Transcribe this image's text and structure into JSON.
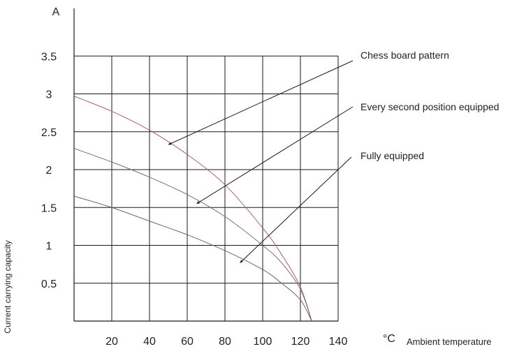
{
  "chart_data": {
    "type": "line",
    "xlabel": "Ambient temperature",
    "xunit": "°C",
    "ylabel": "Current carrying capacity",
    "yunit": "A",
    "xlim": [
      0,
      145
    ],
    "ylim": [
      0,
      3.5
    ],
    "x_ticks": [
      20,
      40,
      60,
      80,
      100,
      120,
      140
    ],
    "y_ticks": [
      0.5,
      1,
      1.5,
      2,
      2.5,
      3,
      3.5
    ],
    "grid": true,
    "series": [
      {
        "name": "Chess board pattern",
        "color": "#a06070",
        "points": [
          [
            0,
            2.97
          ],
          [
            20,
            2.77
          ],
          [
            40,
            2.52
          ],
          [
            60,
            2.2
          ],
          [
            80,
            1.8
          ],
          [
            100,
            1.23
          ],
          [
            110,
            0.88
          ],
          [
            120,
            0.45
          ],
          [
            126,
            0.0
          ]
        ],
        "arrow_target": [
          50,
          2.33
        ]
      },
      {
        "name": "Every second position equipped",
        "color": "#806878",
        "points": [
          [
            0,
            2.28
          ],
          [
            20,
            2.1
          ],
          [
            40,
            1.9
          ],
          [
            60,
            1.67
          ],
          [
            80,
            1.38
          ],
          [
            100,
            1.0
          ],
          [
            110,
            0.77
          ],
          [
            120,
            0.42
          ],
          [
            126,
            0.0
          ]
        ],
        "arrow_target": [
          65,
          1.55
        ]
      },
      {
        "name": "Fully equipped",
        "color": "#706070",
        "points": [
          [
            0,
            1.65
          ],
          [
            20,
            1.5
          ],
          [
            40,
            1.32
          ],
          [
            60,
            1.14
          ],
          [
            80,
            0.93
          ],
          [
            100,
            0.68
          ],
          [
            110,
            0.5
          ],
          [
            120,
            0.28
          ],
          [
            126,
            0.0
          ]
        ],
        "arrow_target": [
          88,
          0.77
        ]
      }
    ]
  }
}
